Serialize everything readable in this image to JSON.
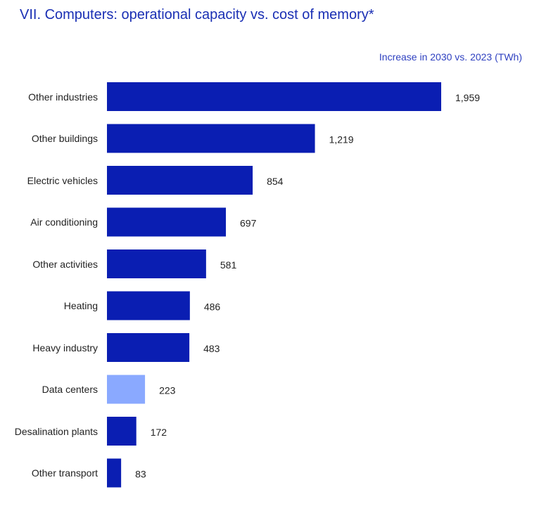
{
  "chart_data": {
    "type": "bar",
    "orientation": "horizontal",
    "title": "VII. Computers: operational capacity vs. cost of memory*",
    "subtitle": "Increase in 2030 vs. 2023 (TWh)",
    "categories": [
      "Other industries",
      "Other buildings",
      "Electric vehicles",
      "Air conditioning",
      "Other activities",
      "Heating",
      "Heavy industry",
      "Data centers",
      "Desalination plants",
      "Other transport"
    ],
    "values": [
      1959,
      1219,
      854,
      697,
      581,
      486,
      483,
      223,
      172,
      83
    ],
    "value_labels": [
      "1,959",
      "1,219",
      "854",
      "697",
      "581",
      "486",
      "483",
      "223",
      "172",
      "83"
    ],
    "colors": [
      "#0a1eb2",
      "#0a1eb2",
      "#0a1eb2",
      "#0a1eb2",
      "#0a1eb2",
      "#0a1eb2",
      "#0a1eb2",
      "#8aa9ff",
      "#0a1eb2",
      "#0a1eb2"
    ]
  }
}
